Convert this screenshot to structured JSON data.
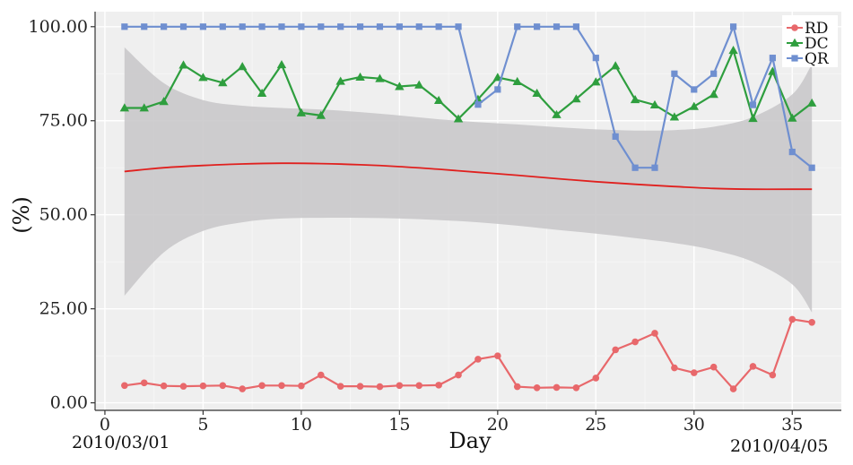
{
  "chart_data": {
    "type": "line",
    "xlabel": "Day",
    "ylabel": "(%)",
    "xlim": [
      -0.5,
      37.5
    ],
    "ylim": [
      -2,
      104
    ],
    "x_ticks": [
      0,
      5,
      10,
      15,
      20,
      25,
      30,
      35
    ],
    "y_ticks": [
      0,
      25,
      50,
      75,
      100
    ],
    "y_tick_labels": [
      "0.00",
      "25.00",
      "50.00",
      "75.00",
      "100.00"
    ],
    "date_start": "2010/03/01",
    "date_end": "2010/04/05",
    "grid": true,
    "legend_position": "top-right",
    "x": [
      1,
      2,
      3,
      4,
      5,
      6,
      7,
      8,
      9,
      10,
      11,
      12,
      13,
      14,
      15,
      16,
      17,
      18,
      19,
      20,
      21,
      22,
      23,
      24,
      25,
      26,
      27,
      28,
      29,
      30,
      31,
      32,
      33,
      34,
      35,
      36
    ],
    "series": [
      {
        "name": "RD",
        "color": "#e8686b",
        "marker": "circle",
        "values": [
          4.6,
          5.3,
          4.5,
          4.4,
          4.5,
          4.6,
          3.7,
          4.6,
          4.6,
          4.5,
          7.4,
          4.4,
          4.4,
          4.3,
          4.6,
          4.6,
          4.7,
          7.4,
          11.6,
          12.5,
          4.3,
          4.0,
          4.1,
          4.0,
          6.6,
          14.1,
          16.2,
          18.5,
          9.3,
          8.0,
          9.5,
          3.7,
          9.7,
          7.4,
          22.2,
          21.4
        ]
      },
      {
        "name": "DC",
        "color": "#2e9e3e",
        "marker": "triangle",
        "values": [
          78.4,
          78.4,
          80.1,
          89.8,
          86.5,
          85.1,
          89.4,
          82.3,
          89.9,
          77.1,
          76.4,
          85.5,
          86.6,
          86.2,
          84.1,
          84.5,
          80.4,
          75.5,
          80.7,
          86.5,
          85.4,
          82.3,
          76.6,
          80.8,
          85.3,
          89.6,
          80.6,
          79.2,
          76.0,
          78.8,
          82.0,
          93.7,
          75.6,
          88.1,
          75.7,
          79.7
        ]
      },
      {
        "name": "QR",
        "color": "#6f8fd0",
        "marker": "square",
        "values": [
          100,
          100,
          100,
          100,
          100,
          100,
          100,
          100,
          100,
          100,
          100,
          100,
          100,
          100,
          100,
          100,
          100,
          100,
          79.3,
          83.3,
          100,
          100,
          100,
          100,
          91.7,
          70.8,
          62.5,
          62.5,
          87.5,
          83.3,
          87.5,
          100,
          79.2,
          91.7,
          66.7,
          62.5
        ]
      }
    ],
    "smooth": {
      "color": "#e0201e",
      "band_color": "#c7c5c8",
      "x": [
        1,
        3,
        5,
        7,
        9,
        11,
        13,
        15,
        17,
        19,
        21,
        23,
        25,
        27,
        29,
        31,
        33,
        35,
        36
      ],
      "mean": [
        61.5,
        62.5,
        63.1,
        63.5,
        63.7,
        63.6,
        63.3,
        62.8,
        62.1,
        61.3,
        60.5,
        59.6,
        58.8,
        58.1,
        57.5,
        57.0,
        56.8,
        56.8,
        56.8
      ],
      "upper": [
        94.5,
        85.0,
        80.5,
        79.0,
        78.4,
        78.0,
        77.3,
        76.4,
        75.4,
        74.6,
        74.0,
        73.3,
        72.7,
        72.4,
        72.5,
        73.4,
        76.0,
        82.0,
        90.0
      ],
      "lower": [
        28.5,
        40.0,
        45.7,
        48.0,
        49.0,
        49.2,
        49.2,
        49.0,
        48.6,
        48.0,
        47.1,
        46.0,
        45.0,
        43.8,
        42.5,
        40.6,
        37.5,
        31.5,
        24.0
      ]
    }
  }
}
